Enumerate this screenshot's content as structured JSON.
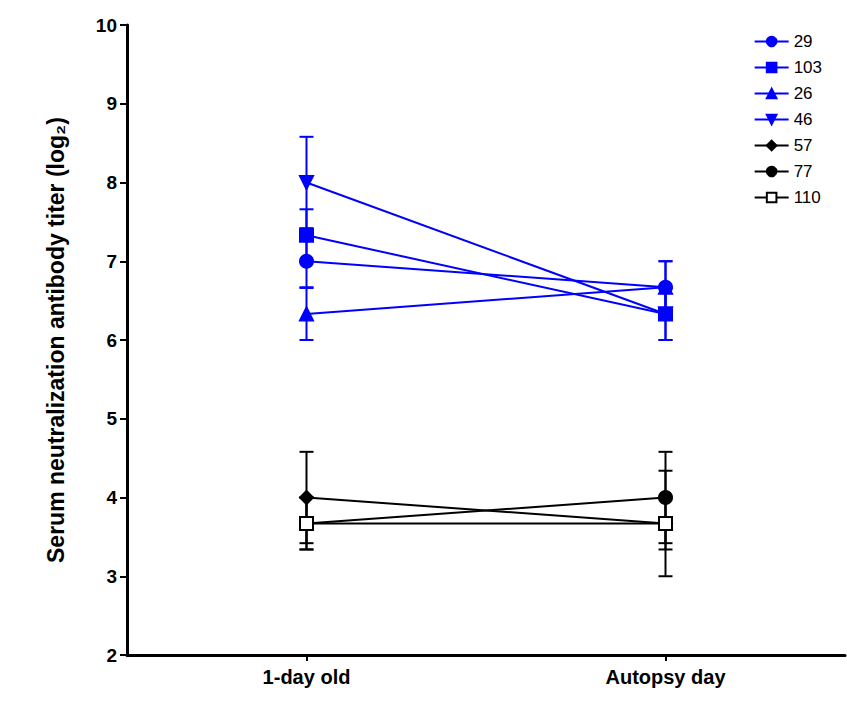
{
  "chart_data": {
    "type": "line",
    "y_label": "Serum neutralization antibody titer (log₂)",
    "categories": [
      "1-day old",
      "Autopsy day"
    ],
    "ylim": [
      2,
      10
    ],
    "yticks": [
      2,
      3,
      4,
      5,
      6,
      7,
      8,
      9,
      10
    ],
    "grid": false,
    "legend": "upper right",
    "series": [
      {
        "name": "29",
        "color": "#0000ff",
        "marker": "circle",
        "values": [
          7.0,
          6.67
        ],
        "errors": [
          0.33,
          0.33
        ]
      },
      {
        "name": "103",
        "color": "#0000ff",
        "marker": "square",
        "values": [
          7.33,
          6.33
        ],
        "errors": [
          0.33,
          0.33
        ]
      },
      {
        "name": "26",
        "color": "#0000ff",
        "marker": "triangle",
        "values": [
          6.33,
          6.67
        ],
        "errors": [
          0.33,
          0.33
        ]
      },
      {
        "name": "46",
        "color": "#0000ff",
        "marker": "triangle-down",
        "values": [
          8.0,
          6.33
        ],
        "errors": [
          0.58,
          0.33
        ]
      },
      {
        "name": "57",
        "color": "#000000",
        "marker": "diamond",
        "values": [
          4.0,
          3.67
        ],
        "errors": [
          0.58,
          0.33
        ]
      },
      {
        "name": "77",
        "color": "#000000",
        "marker": "circle",
        "values": [
          3.67,
          4.0
        ],
        "errors": [
          0.33,
          0.58
        ]
      },
      {
        "name": "110",
        "color": "#000000",
        "marker": "square-open",
        "values": [
          3.67,
          3.67
        ],
        "errors": [
          0.33,
          0.67
        ]
      }
    ]
  }
}
